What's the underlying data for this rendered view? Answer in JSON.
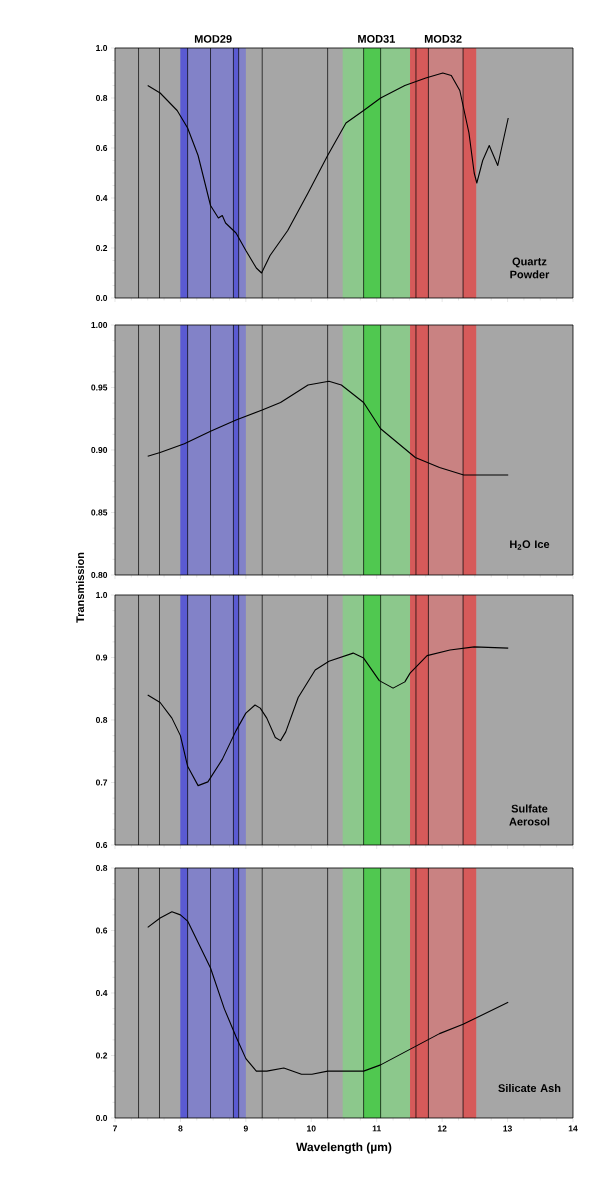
{
  "chart_data": [
    {
      "type": "line",
      "xlim": [
        7,
        14
      ],
      "xticks": [
        7,
        8,
        9,
        10,
        11,
        12,
        13,
        14
      ],
      "tick_labels": "y",
      "ylim": [
        0,
        1
      ],
      "yticks": [
        {
          "value": 0,
          "label": "0.0"
        },
        {
          "value": 0.2,
          "label": "0.2"
        },
        {
          "value": 0.4,
          "label": "0.4"
        },
        {
          "value": 0.6,
          "label": "0.6"
        },
        {
          "value": 0.8,
          "label": "0.8"
        },
        {
          "value": 1,
          "label": "1.0"
        }
      ],
      "series": [
        {
          "color": "#000000",
          "x": [
            7.5,
            7.69,
            7.95,
            8.11,
            8.27,
            8.46,
            8.58,
            8.64,
            8.69,
            8.85,
            9.0,
            9.16,
            9.24,
            9.37,
            9.64,
            9.95,
            10.25,
            10.53,
            10.8,
            11.06,
            11.43,
            11.75,
            12.01,
            12.14,
            12.27,
            12.41,
            12.49,
            12.53,
            12.62,
            12.72,
            12.85,
            13.01
          ],
          "values": [
            0.85,
            0.82,
            0.75,
            0.68,
            0.57,
            0.37,
            0.32,
            0.33,
            0.3,
            0.26,
            0.19,
            0.12,
            0.1,
            0.17,
            0.27,
            0.42,
            0.57,
            0.7,
            0.75,
            0.8,
            0.85,
            0.88,
            0.9,
            0.89,
            0.83,
            0.66,
            0.5,
            0.46,
            0.55,
            0.61,
            0.53,
            0.72
          ]
        }
      ],
      "bands": [
        {
          "axis": "x",
          "from": 8.0,
          "to": 9.0,
          "color": "#8282c8",
          "label": "MOD29"
        },
        {
          "axis": "x",
          "from": 8.0,
          "to": 8.11,
          "color": "#5a5ad2"
        },
        {
          "axis": "x",
          "from": 8.81,
          "to": 8.89,
          "color": "#5a5ad2"
        },
        {
          "axis": "x",
          "from": 10.48,
          "to": 11.51,
          "color": "#8cc88c",
          "label": "MOD31"
        },
        {
          "axis": "x",
          "from": 10.8,
          "to": 11.06,
          "color": "#50c850"
        },
        {
          "axis": "x",
          "from": 11.51,
          "to": 12.52,
          "color": "#c98282",
          "label": "MOD32"
        },
        {
          "axis": "x",
          "from": 11.51,
          "to": 11.79,
          "color": "#d65a5a"
        },
        {
          "axis": "x",
          "from": 12.32,
          "to": 12.52,
          "color": "#d65a5a"
        }
      ],
      "ref_lines": [
        {
          "axis": "x",
          "value": 7.36,
          "color": "#000000"
        },
        {
          "axis": "x",
          "value": 7.68,
          "color": "#000000"
        },
        {
          "axis": "x",
          "value": 8.11,
          "color": "#000000"
        },
        {
          "axis": "x",
          "value": 8.46,
          "color": "#000000"
        },
        {
          "axis": "x",
          "value": 8.81,
          "color": "#000000"
        },
        {
          "axis": "x",
          "value": 8.89,
          "color": "#000000"
        },
        {
          "axis": "x",
          "value": 9.25,
          "color": "#000000"
        },
        {
          "axis": "x",
          "value": 10.25,
          "color": "#000000"
        },
        {
          "axis": "x",
          "value": 10.8,
          "color": "#000000"
        },
        {
          "axis": "x",
          "value": 11.06,
          "color": "#000000"
        },
        {
          "axis": "x",
          "value": 11.6,
          "color": "#000000"
        },
        {
          "axis": "x",
          "value": 11.79,
          "color": "#000000"
        },
        {
          "axis": "x",
          "value": 12.32,
          "color": "#000000"
        }
      ],
      "annotations": [
        "Quartz Powder"
      ]
    },
    {
      "type": "line",
      "xlim": [
        7,
        14
      ],
      "xticks": [
        7,
        8,
        9,
        10,
        11,
        12,
        13,
        14
      ],
      "tick_labels": "y",
      "ylim": [
        0.8,
        1.0
      ],
      "yticks": [
        {
          "value": 0.8,
          "label": "0.80"
        },
        {
          "value": 0.85,
          "label": "0.85"
        },
        {
          "value": 0.9,
          "label": "0.90"
        },
        {
          "value": 0.95,
          "label": "0.95"
        },
        {
          "value": 1.0,
          "label": "1.00"
        }
      ],
      "ylabel": "Transmission",
      "series": [
        {
          "color": "#000000",
          "x": [
            7.5,
            7.69,
            8.06,
            8.46,
            8.85,
            9.25,
            9.53,
            9.95,
            10.27,
            10.46,
            10.8,
            11.06,
            11.59,
            11.96,
            12.33,
            12.64,
            13.01
          ],
          "values": [
            0.895,
            0.898,
            0.905,
            0.915,
            0.924,
            0.932,
            0.938,
            0.952,
            0.955,
            0.952,
            0.938,
            0.917,
            0.894,
            0.886,
            0.88,
            0.88,
            0.88
          ]
        }
      ],
      "bands": [
        {
          "axis": "x",
          "from": 8.0,
          "to": 9.0,
          "color": "#8282c8"
        },
        {
          "axis": "x",
          "from": 8.0,
          "to": 8.11,
          "color": "#5a5ad2"
        },
        {
          "axis": "x",
          "from": 8.81,
          "to": 8.89,
          "color": "#5a5ad2"
        },
        {
          "axis": "x",
          "from": 10.48,
          "to": 11.51,
          "color": "#8cc88c"
        },
        {
          "axis": "x",
          "from": 10.8,
          "to": 11.06,
          "color": "#50c850"
        },
        {
          "axis": "x",
          "from": 11.51,
          "to": 12.52,
          "color": "#c98282"
        },
        {
          "axis": "x",
          "from": 11.51,
          "to": 11.79,
          "color": "#d65a5a"
        },
        {
          "axis": "x",
          "from": 12.32,
          "to": 12.52,
          "color": "#d65a5a"
        }
      ],
      "ref_lines": [
        {
          "axis": "x",
          "value": 7.36,
          "color": "#000000"
        },
        {
          "axis": "x",
          "value": 7.68,
          "color": "#000000"
        },
        {
          "axis": "x",
          "value": 8.11,
          "color": "#000000"
        },
        {
          "axis": "x",
          "value": 8.46,
          "color": "#000000"
        },
        {
          "axis": "x",
          "value": 8.81,
          "color": "#000000"
        },
        {
          "axis": "x",
          "value": 8.89,
          "color": "#000000"
        },
        {
          "axis": "x",
          "value": 9.25,
          "color": "#000000"
        },
        {
          "axis": "x",
          "value": 10.25,
          "color": "#000000"
        },
        {
          "axis": "x",
          "value": 10.8,
          "color": "#000000"
        },
        {
          "axis": "x",
          "value": 11.06,
          "color": "#000000"
        },
        {
          "axis": "x",
          "value": 11.6,
          "color": "#000000"
        },
        {
          "axis": "x",
          "value": 11.79,
          "color": "#000000"
        },
        {
          "axis": "x",
          "value": 12.32,
          "color": "#000000"
        }
      ],
      "annotations": [
        "H$_{2}$O Ice"
      ]
    },
    {
      "type": "line",
      "xlim": [
        7,
        14
      ],
      "xticks": [
        7,
        8,
        9,
        10,
        11,
        12,
        13,
        14
      ],
      "tick_labels": "y",
      "ylim": [
        0.6,
        1.0
      ],
      "yticks": [
        {
          "value": 0.6,
          "label": "0.6"
        },
        {
          "value": 0.7,
          "label": "0.7"
        },
        {
          "value": 0.8,
          "label": "0.8"
        },
        {
          "value": 0.9,
          "label": "0.9"
        },
        {
          "value": 1.0,
          "label": "1.0"
        }
      ],
      "series": [
        {
          "color": "#000000",
          "x": [
            7.5,
            7.69,
            7.87,
            8.0,
            8.11,
            8.27,
            8.42,
            8.64,
            8.85,
            9.0,
            9.14,
            9.22,
            9.32,
            9.45,
            9.53,
            9.61,
            9.8,
            10.06,
            10.27,
            10.64,
            10.8,
            11.04,
            11.25,
            11.43,
            11.51,
            11.77,
            12.12,
            12.49,
            13.01
          ],
          "values": [
            0.84,
            0.828,
            0.803,
            0.775,
            0.726,
            0.695,
            0.701,
            0.737,
            0.783,
            0.811,
            0.824,
            0.819,
            0.803,
            0.772,
            0.767,
            0.781,
            0.836,
            0.88,
            0.894,
            0.907,
            0.899,
            0.863,
            0.851,
            0.861,
            0.875,
            0.903,
            0.912,
            0.917,
            0.915
          ]
        }
      ],
      "bands": [
        {
          "axis": "x",
          "from": 8.0,
          "to": 9.0,
          "color": "#8282c8"
        },
        {
          "axis": "x",
          "from": 8.0,
          "to": 8.11,
          "color": "#5a5ad2"
        },
        {
          "axis": "x",
          "from": 8.81,
          "to": 8.89,
          "color": "#5a5ad2"
        },
        {
          "axis": "x",
          "from": 10.48,
          "to": 11.51,
          "color": "#8cc88c"
        },
        {
          "axis": "x",
          "from": 10.8,
          "to": 11.06,
          "color": "#50c850"
        },
        {
          "axis": "x",
          "from": 11.51,
          "to": 12.52,
          "color": "#c98282"
        },
        {
          "axis": "x",
          "from": 11.51,
          "to": 11.79,
          "color": "#d65a5a"
        },
        {
          "axis": "x",
          "from": 12.32,
          "to": 12.52,
          "color": "#d65a5a"
        }
      ],
      "ref_lines": [
        {
          "axis": "x",
          "value": 7.36,
          "color": "#000000"
        },
        {
          "axis": "x",
          "value": 7.68,
          "color": "#000000"
        },
        {
          "axis": "x",
          "value": 8.11,
          "color": "#000000"
        },
        {
          "axis": "x",
          "value": 8.46,
          "color": "#000000"
        },
        {
          "axis": "x",
          "value": 8.81,
          "color": "#000000"
        },
        {
          "axis": "x",
          "value": 8.89,
          "color": "#000000"
        },
        {
          "axis": "x",
          "value": 9.25,
          "color": "#000000"
        },
        {
          "axis": "x",
          "value": 10.25,
          "color": "#000000"
        },
        {
          "axis": "x",
          "value": 10.8,
          "color": "#000000"
        },
        {
          "axis": "x",
          "value": 11.06,
          "color": "#000000"
        },
        {
          "axis": "x",
          "value": 11.6,
          "color": "#000000"
        },
        {
          "axis": "x",
          "value": 11.79,
          "color": "#000000"
        },
        {
          "axis": "x",
          "value": 12.32,
          "color": "#000000"
        }
      ],
      "annotations": [
        "Sulfate Aerosol"
      ]
    },
    {
      "type": "line",
      "xlim": [
        7,
        14
      ],
      "xticks": [
        7,
        8,
        9,
        10,
        11,
        12,
        13,
        14
      ],
      "xlabel": "Wavelength (µm)",
      "ylim": [
        0,
        0.8
      ],
      "yticks": [
        {
          "value": 0,
          "label": "0.0"
        },
        {
          "value": 0.2,
          "label": "0.2"
        },
        {
          "value": 0.4,
          "label": "0.4"
        },
        {
          "value": 0.6,
          "label": "0.6"
        },
        {
          "value": 0.8,
          "label": "0.8"
        }
      ],
      "series": [
        {
          "color": "#000000",
          "x": [
            7.5,
            7.69,
            7.87,
            8.0,
            8.11,
            8.46,
            8.67,
            8.85,
            9.0,
            9.16,
            9.32,
            9.58,
            9.85,
            10.01,
            10.25,
            10.48,
            10.8,
            11.06,
            11.6,
            11.96,
            12.32,
            13.01
          ],
          "values": [
            0.61,
            0.64,
            0.66,
            0.65,
            0.63,
            0.48,
            0.35,
            0.26,
            0.19,
            0.15,
            0.15,
            0.16,
            0.14,
            0.14,
            0.15,
            0.15,
            0.15,
            0.17,
            0.23,
            0.27,
            0.3,
            0.37
          ]
        }
      ],
      "bands": [
        {
          "axis": "x",
          "from": 8.0,
          "to": 9.0,
          "color": "#8282c8"
        },
        {
          "axis": "x",
          "from": 8.0,
          "to": 8.11,
          "color": "#5a5ad2"
        },
        {
          "axis": "x",
          "from": 8.81,
          "to": 8.89,
          "color": "#5a5ad2"
        },
        {
          "axis": "x",
          "from": 10.48,
          "to": 11.51,
          "color": "#8cc88c"
        },
        {
          "axis": "x",
          "from": 10.8,
          "to": 11.06,
          "color": "#50c850"
        },
        {
          "axis": "x",
          "from": 11.51,
          "to": 12.52,
          "color": "#c98282"
        },
        {
          "axis": "x",
          "from": 11.51,
          "to": 11.79,
          "color": "#d65a5a"
        },
        {
          "axis": "x",
          "from": 12.32,
          "to": 12.52,
          "color": "#d65a5a"
        }
      ],
      "ref_lines": [
        {
          "axis": "x",
          "value": 7.36,
          "color": "#000000"
        },
        {
          "axis": "x",
          "value": 7.68,
          "color": "#000000"
        },
        {
          "axis": "x",
          "value": 8.11,
          "color": "#000000"
        },
        {
          "axis": "x",
          "value": 8.46,
          "color": "#000000"
        },
        {
          "axis": "x",
          "value": 8.81,
          "color": "#000000"
        },
        {
          "axis": "x",
          "value": 8.89,
          "color": "#000000"
        },
        {
          "axis": "x",
          "value": 9.25,
          "color": "#000000"
        },
        {
          "axis": "x",
          "value": 10.25,
          "color": "#000000"
        },
        {
          "axis": "x",
          "value": 10.8,
          "color": "#000000"
        },
        {
          "axis": "x",
          "value": 11.06,
          "color": "#000000"
        },
        {
          "axis": "x",
          "value": 11.6,
          "color": "#000000"
        },
        {
          "axis": "x",
          "value": 11.79,
          "color": "#000000"
        },
        {
          "axis": "x",
          "value": 12.32,
          "color": "#000000"
        }
      ],
      "annotations": [
        "Silicate Ash"
      ]
    }
  ]
}
